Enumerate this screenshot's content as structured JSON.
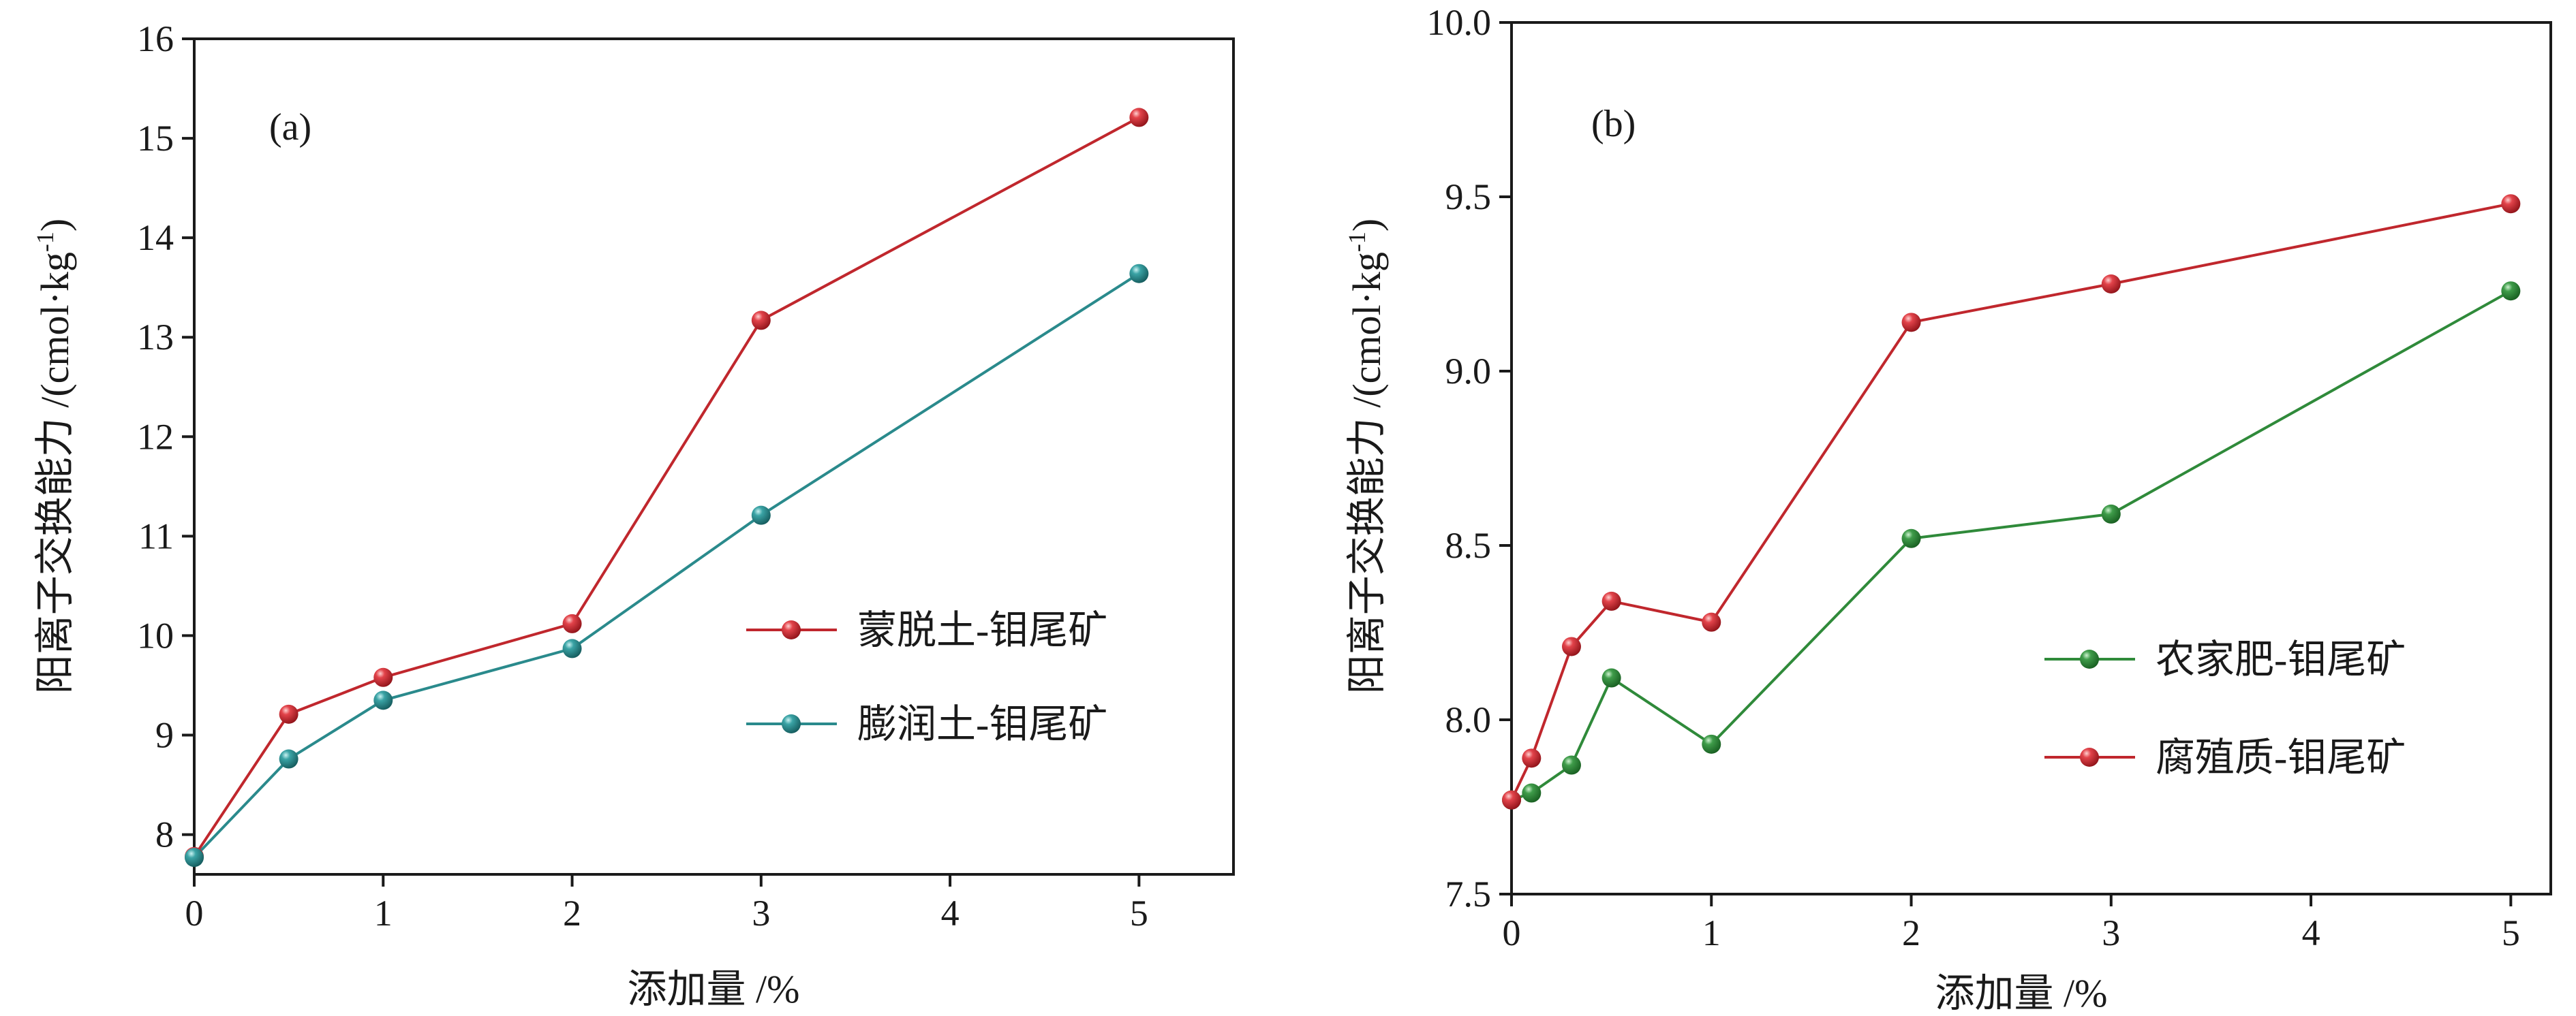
{
  "chart_data": [
    {
      "type": "line",
      "panel_label": "(a)",
      "xlabel": "添加量 /%",
      "ylabel": "阳离子交换能力 /(cmol·kg",
      "ylabel_sup": "-1",
      "ylabel_close": ")",
      "xlim": [
        0,
        5.5
      ],
      "ylim": [
        7.6,
        16
      ],
      "xticks": [
        0,
        1,
        2,
        3,
        4,
        5
      ],
      "yticks": [
        8,
        9,
        10,
        11,
        12,
        13,
        14,
        15,
        16
      ],
      "ytick_labels": [
        "8",
        "9",
        "10",
        "11",
        "12",
        "13",
        "14",
        "15",
        "16"
      ],
      "legend_position": "center-right",
      "series": [
        {
          "name": "蒙脱土-钼尾矿",
          "color": "#c0272d",
          "x": [
            0,
            0.5,
            1,
            2,
            3,
            5
          ],
          "y": [
            7.78,
            9.21,
            9.58,
            10.12,
            13.17,
            15.21
          ]
        },
        {
          "name": "膨润土-钼尾矿",
          "color": "#2a8a8c",
          "x": [
            0,
            0.5,
            1,
            2,
            3,
            5
          ],
          "y": [
            7.77,
            8.76,
            9.35,
            9.87,
            11.21,
            13.64
          ]
        }
      ]
    },
    {
      "type": "line",
      "panel_label": "(b)",
      "xlabel": "添加量 /%",
      "ylabel": "阳离子交换能力 /(cmol·kg",
      "ylabel_sup": "-1",
      "ylabel_close": ")",
      "xlim": [
        0,
        5.2
      ],
      "ylim": [
        7.5,
        10.0
      ],
      "xticks": [
        0,
        1,
        2,
        3,
        4,
        5
      ],
      "yticks": [
        7.5,
        8.0,
        8.5,
        9.0,
        9.5,
        10.0
      ],
      "ytick_labels": [
        "7.5",
        "8.0",
        "8.5",
        "9.0",
        "9.5",
        "10.0"
      ],
      "legend_position": "center-right",
      "series": [
        {
          "name": "农家肥-钼尾矿",
          "color": "#2f8a3a",
          "x": [
            0,
            0.1,
            0.3,
            0.5,
            1,
            2,
            3,
            5
          ],
          "y": [
            7.77,
            7.79,
            7.87,
            8.12,
            7.93,
            8.52,
            8.59,
            9.23
          ]
        },
        {
          "name": "腐殖质-钼尾矿",
          "color": "#c0272d",
          "x": [
            0,
            0.1,
            0.3,
            0.5,
            1,
            2,
            3,
            5
          ],
          "y": [
            7.77,
            7.89,
            8.21,
            8.34,
            8.28,
            9.14,
            9.25,
            9.48
          ]
        }
      ]
    }
  ]
}
